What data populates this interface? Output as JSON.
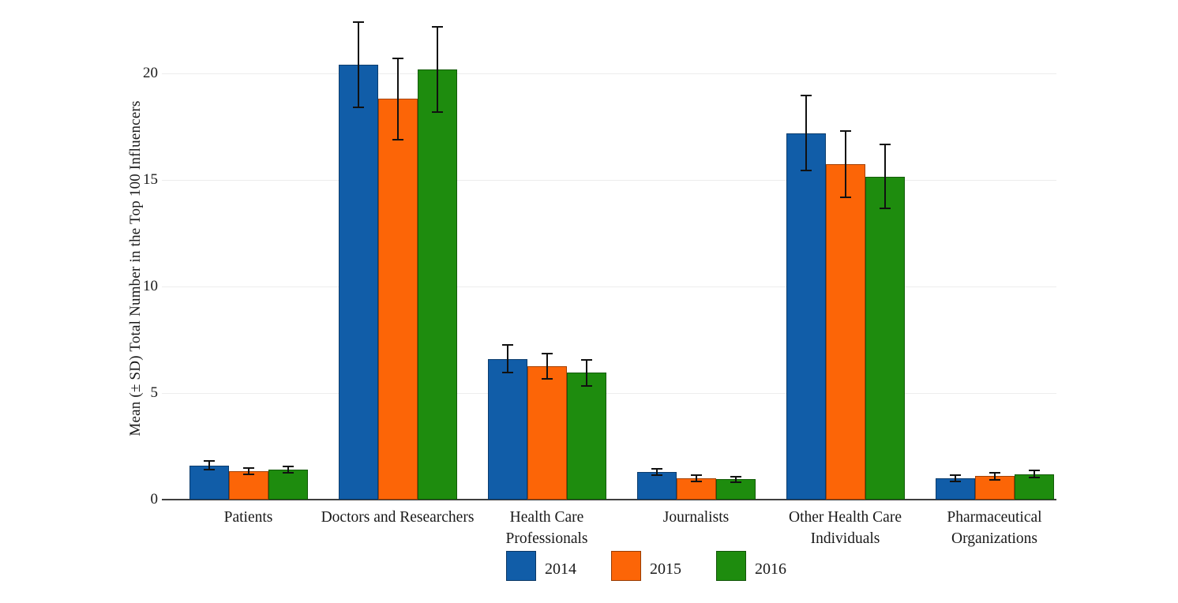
{
  "chart_data": {
    "type": "bar",
    "title": "",
    "ylabel": "Mean (± SD) Total Number in the Top 100 Influencers",
    "xlabel": "",
    "categories": [
      "Patients",
      "Doctors and Researchers",
      "Health Care\nProfessionals",
      "Journalists",
      "Other Health Care\nIndividuals",
      "Pharmaceutical\nOrganizations"
    ],
    "series": [
      {
        "name": "2014",
        "color": "#115da8",
        "values": [
          1.6,
          20.4,
          6.6,
          1.3,
          17.2,
          1.0
        ],
        "sd": [
          0.2,
          2.0,
          0.65,
          0.15,
          1.75,
          0.15
        ]
      },
      {
        "name": "2015",
        "color": "#fc6507",
        "values": [
          1.35,
          18.8,
          6.25,
          1.0,
          15.75,
          1.1
        ],
        "sd": [
          0.15,
          1.9,
          0.6,
          0.15,
          1.55,
          0.16
        ]
      },
      {
        "name": "2016",
        "color": "#1e8c0e",
        "values": [
          1.4,
          20.2,
          5.95,
          0.95,
          15.15,
          1.2
        ],
        "sd": [
          0.15,
          2.0,
          0.6,
          0.12,
          1.5,
          0.17
        ]
      }
    ],
    "error_bars": true,
    "yticks": [
      0,
      5,
      10,
      15,
      20
    ],
    "ylim": [
      0,
      23.4
    ],
    "grid": true,
    "grid_color": "#ededed",
    "axis_color": "#3f3f3f",
    "legend_position": "bottom"
  }
}
